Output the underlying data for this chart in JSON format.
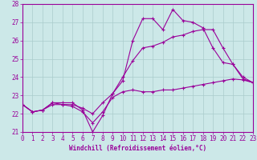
{
  "xlabel": "Windchill (Refroidissement éolien,°C)",
  "bg_color": "#cce8e8",
  "line_color": "#990099",
  "x_values": [
    0,
    1,
    2,
    3,
    4,
    5,
    6,
    7,
    8,
    9,
    10,
    11,
    12,
    13,
    14,
    15,
    16,
    17,
    18,
    19,
    20,
    21,
    22,
    23
  ],
  "line1": [
    22.5,
    22.1,
    22.2,
    22.6,
    22.6,
    22.6,
    22.2,
    21.0,
    21.9,
    23.1,
    23.8,
    26.0,
    27.2,
    27.2,
    26.6,
    27.7,
    27.1,
    27.0,
    26.7,
    25.6,
    24.8,
    24.7,
    23.9,
    23.7
  ],
  "line2": [
    22.5,
    22.1,
    22.2,
    22.6,
    22.5,
    22.4,
    22.1,
    21.5,
    22.1,
    22.9,
    23.2,
    23.3,
    23.2,
    23.2,
    23.3,
    23.3,
    23.4,
    23.5,
    23.6,
    23.7,
    23.8,
    23.9,
    23.85,
    23.7
  ],
  "line3": [
    22.5,
    22.1,
    22.2,
    22.5,
    22.5,
    22.5,
    22.3,
    22.0,
    22.6,
    23.1,
    24.0,
    24.9,
    25.6,
    25.7,
    25.9,
    26.2,
    26.3,
    26.5,
    26.6,
    26.6,
    25.6,
    24.7,
    24.0,
    23.7
  ],
  "ylim": [
    21.0,
    28.0
  ],
  "yticks": [
    21,
    22,
    23,
    24,
    25,
    26,
    27,
    28
  ],
  "xlim": [
    0,
    23
  ],
  "xticks": [
    0,
    1,
    2,
    3,
    4,
    5,
    6,
    7,
    8,
    9,
    10,
    11,
    12,
    13,
    14,
    15,
    16,
    17,
    18,
    19,
    20,
    21,
    22,
    23
  ],
  "grid_color": "#aacccc",
  "marker": "+",
  "markersize": 3,
  "linewidth": 0.8,
  "tick_fontsize": 5.5,
  "xlabel_fontsize": 5.5
}
